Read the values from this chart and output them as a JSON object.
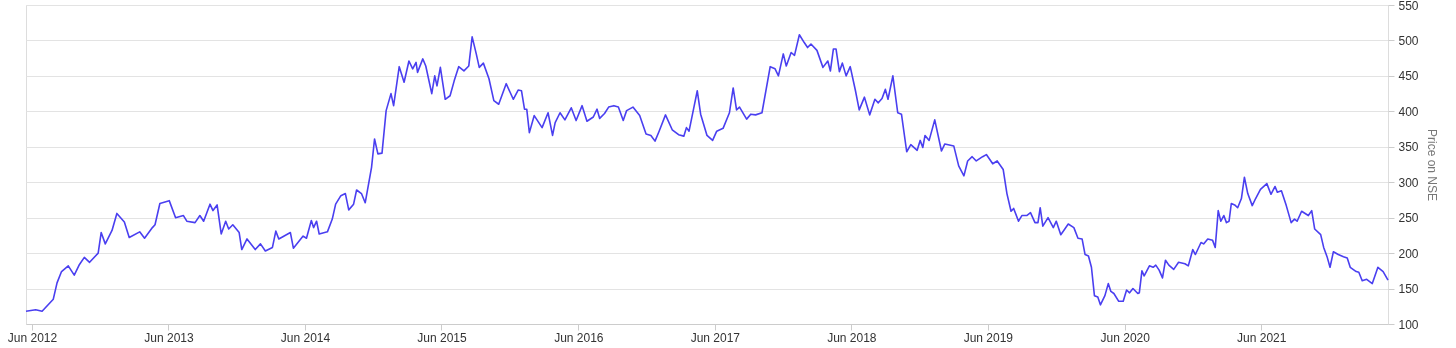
{
  "chart_data": {
    "type": "line",
    "ylabel": "Price on NSE",
    "grid": "y",
    "marker": "none",
    "line_style": "solid",
    "xlim": [
      "2012-05-16",
      "2022-05-06"
    ],
    "ylim": [
      100,
      550
    ],
    "yticks": [
      100,
      150,
      200,
      250,
      300,
      350,
      400,
      450,
      500,
      550
    ],
    "xticks": [
      {
        "value": "2012-06-01",
        "label": "Jun 2012"
      },
      {
        "value": "2013-06-01",
        "label": "Jun 2013"
      },
      {
        "value": "2014-06-01",
        "label": "Jun 2014"
      },
      {
        "value": "2015-06-01",
        "label": "Jun 2015"
      },
      {
        "value": "2016-06-01",
        "label": "Jun 2016"
      },
      {
        "value": "2017-06-01",
        "label": "Jun 2017"
      },
      {
        "value": "2018-06-01",
        "label": "Jun 2018"
      },
      {
        "value": "2019-06-01",
        "label": "Jun 2019"
      },
      {
        "value": "2020-06-01",
        "label": "Jun 2020"
      },
      {
        "value": "2021-06-01",
        "label": "Jun 2021"
      }
    ],
    "series": [
      {
        "color": "#4a3ff0",
        "x": [
          "2012-05-16",
          "2012-06-11",
          "2012-06-28",
          "2012-07-28",
          "2012-08-07",
          "2012-08-19",
          "2012-09-06",
          "2012-09-22",
          "2012-10-06",
          "2012-10-19",
          "2012-11-02",
          "2012-11-25",
          "2012-12-03",
          "2012-12-14",
          "2013-01-01",
          "2013-01-14",
          "2013-02-03",
          "2013-02-16",
          "2013-03-16",
          "2013-03-29",
          "2013-04-19",
          "2013-04-26",
          "2013-05-09",
          "2013-06-03",
          "2013-06-20",
          "2013-07-11",
          "2013-07-20",
          "2013-08-11",
          "2013-08-24",
          "2013-09-03",
          "2013-09-20",
          "2013-09-28",
          "2013-10-09",
          "2013-10-20",
          "2013-11-01",
          "2013-11-09",
          "2013-11-20",
          "2013-12-07",
          "2013-12-14",
          "2013-12-28",
          "2014-01-19",
          "2014-02-02",
          "2014-02-15",
          "2014-03-06",
          "2014-03-15",
          "2014-03-23",
          "2014-04-23",
          "2014-05-01",
          "2014-05-27",
          "2014-06-05",
          "2014-06-18",
          "2014-06-24",
          "2014-07-02",
          "2014-07-09",
          "2014-07-31",
          "2014-08-13",
          "2014-08-22",
          "2014-09-05",
          "2014-09-17",
          "2014-09-26",
          "2014-10-09",
          "2014-10-17",
          "2014-10-30",
          "2014-11-09",
          "2014-11-26",
          "2014-12-04",
          "2014-12-13",
          "2014-12-24",
          "2015-01-04",
          "2015-01-17",
          "2015-01-24",
          "2015-02-08",
          "2015-02-21",
          "2015-03-06",
          "2015-03-16",
          "2015-03-25",
          "2015-03-29",
          "2015-04-12",
          "2015-04-20",
          "2015-05-06",
          "2015-05-14",
          "2015-05-20",
          "2015-05-29",
          "2015-06-11",
          "2015-06-24",
          "2015-07-05",
          "2015-07-17",
          "2015-07-31",
          "2015-08-13",
          "2015-08-22",
          "2015-09-02",
          "2015-09-10",
          "2015-09-21",
          "2015-10-06",
          "2015-10-19",
          "2015-11-01",
          "2015-11-21",
          "2015-12-10",
          "2015-12-23",
          "2016-01-01",
          "2016-01-09",
          "2016-01-15",
          "2016-01-22",
          "2016-02-04",
          "2016-02-25",
          "2016-03-12",
          "2016-03-24",
          "2016-03-31",
          "2016-04-13",
          "2016-04-26",
          "2016-05-13",
          "2016-05-26",
          "2016-06-11",
          "2016-06-24",
          "2016-07-11",
          "2016-07-21",
          "2016-07-28",
          "2016-08-10",
          "2016-08-21",
          "2016-09-04",
          "2016-09-16",
          "2016-09-29",
          "2016-10-08",
          "2016-10-25",
          "2016-11-12",
          "2016-11-29",
          "2016-12-12",
          "2016-12-23",
          "2017-01-03",
          "2017-01-20",
          "2017-02-07",
          "2017-02-24",
          "2017-03-10",
          "2017-03-17",
          "2017-03-24",
          "2017-04-05",
          "2017-04-15",
          "2017-04-24",
          "2017-05-11",
          "2017-05-26",
          "2017-06-06",
          "2017-06-23",
          "2017-07-10",
          "2017-07-20",
          "2017-07-29",
          "2017-08-06",
          "2017-08-25",
          "2017-09-05",
          "2017-09-18",
          "2017-10-05",
          "2017-10-27",
          "2017-11-09",
          "2017-11-18",
          "2017-12-01",
          "2017-12-09",
          "2017-12-22",
          "2017-12-31",
          "2018-01-13",
          "2018-01-26",
          "2018-02-04",
          "2018-02-13",
          "2018-03-01",
          "2018-03-17",
          "2018-03-30",
          "2018-04-06",
          "2018-04-14",
          "2018-04-21",
          "2018-04-30",
          "2018-05-08",
          "2018-05-18",
          "2018-05-29",
          "2018-06-12",
          "2018-06-22",
          "2018-07-06",
          "2018-07-20",
          "2018-08-03",
          "2018-08-12",
          "2018-08-22",
          "2018-08-31",
          "2018-09-07",
          "2018-09-20",
          "2018-10-03",
          "2018-10-13",
          "2018-10-27",
          "2018-11-07",
          "2018-11-24",
          "2018-12-02",
          "2018-12-09",
          "2018-12-15",
          "2018-12-26",
          "2019-01-10",
          "2019-01-28",
          "2019-02-06",
          "2019-03-02",
          "2019-03-15",
          "2019-03-29",
          "2019-04-08",
          "2019-04-20",
          "2019-05-01",
          "2019-05-18",
          "2019-05-28",
          "2019-06-14",
          "2019-06-26",
          "2019-07-12",
          "2019-07-22",
          "2019-08-02",
          "2019-08-09",
          "2019-08-22",
          "2019-08-31",
          "2019-09-13",
          "2019-09-23",
          "2019-10-05",
          "2019-10-13",
          "2019-10-19",
          "2019-10-26",
          "2019-11-09",
          "2019-11-23",
          "2019-12-01",
          "2019-12-13",
          "2019-12-21",
          "2020-01-02",
          "2020-01-17",
          "2020-01-28",
          "2020-02-08",
          "2020-02-16",
          "2020-02-25",
          "2020-03-04",
          "2020-03-12",
          "2020-03-21",
          "2020-03-28",
          "2020-04-09",
          "2020-04-18",
          "2020-04-25",
          "2020-05-03",
          "2020-05-16",
          "2020-05-28",
          "2020-06-06",
          "2020-06-14",
          "2020-06-23",
          "2020-07-06",
          "2020-07-10",
          "2020-07-17",
          "2020-07-23",
          "2020-08-06",
          "2020-08-16",
          "2020-08-23",
          "2020-09-01",
          "2020-09-10",
          "2020-09-18",
          "2020-09-27",
          "2020-10-10",
          "2020-10-23",
          "2020-11-09",
          "2020-11-18",
          "2020-11-30",
          "2020-12-07",
          "2020-12-22",
          "2020-12-29",
          "2021-01-09",
          "2021-01-22",
          "2021-01-29",
          "2021-02-06",
          "2021-02-13",
          "2021-02-21",
          "2021-02-28",
          "2021-03-07",
          "2021-03-13",
          "2021-03-22",
          "2021-03-30",
          "2021-04-09",
          "2021-04-17",
          "2021-04-26",
          "2021-05-08",
          "2021-05-17",
          "2021-05-30",
          "2021-06-16",
          "2021-06-27",
          "2021-07-08",
          "2021-07-14",
          "2021-07-25",
          "2021-08-07",
          "2021-08-20",
          "2021-08-29",
          "2021-09-05",
          "2021-09-17",
          "2021-10-05",
          "2021-10-14",
          "2021-10-22",
          "2021-11-07",
          "2021-11-15",
          "2021-11-24",
          "2021-12-02",
          "2021-12-11",
          "2021-12-24",
          "2022-01-07",
          "2022-01-17",
          "2022-01-25",
          "2022-02-10",
          "2022-02-17",
          "2022-02-26",
          "2022-03-10",
          "2022-03-25",
          "2022-04-09",
          "2022-04-23",
          "2022-05-06"
        ],
        "values": [
          118,
          120,
          118,
          135,
          158,
          174,
          182,
          169,
          184,
          194,
          187,
          200,
          229,
          213,
          232,
          256,
          244,
          222,
          230,
          221,
          236,
          240,
          270,
          274,
          250,
          253,
          245,
          243,
          253,
          245,
          269,
          260,
          268,
          227,
          245,
          234,
          240,
          229,
          205,
          220,
          205,
          213,
          203,
          208,
          231,
          220,
          229,
          207,
          224,
          221,
          246,
          236,
          245,
          227,
          230,
          248,
          269,
          281,
          284,
          261,
          269,
          289,
          284,
          271,
          321,
          361,
          340,
          341,
          401,
          425,
          408,
          463,
          441,
          471,
          460,
          469,
          455,
          474,
          464,
          425,
          450,
          436,
          462,
          417,
          422,
          443,
          463,
          457,
          464,
          505,
          481,
          462,
          468,
          446,
          415,
          410,
          439,
          417,
          430,
          429,
          403,
          403,
          370,
          394,
          377,
          398,
          366,
          384,
          398,
          388,
          405,
          387,
          408,
          386,
          392,
          403,
          390,
          397,
          406,
          408,
          406,
          387,
          401,
          406,
          394,
          368,
          366,
          358,
          372,
          395,
          374,
          367,
          365,
          377,
          372,
          403,
          429,
          396,
          366,
          359,
          372,
          376,
          398,
          433,
          402,
          406,
          389,
          396,
          395,
          398,
          463,
          460,
          450,
          481,
          464,
          483,
          479,
          508,
          497,
          490,
          495,
          486,
          462,
          471,
          457,
          488,
          488,
          456,
          468,
          450,
          463,
          429,
          402,
          420,
          395,
          417,
          412,
          418,
          431,
          417,
          450,
          398,
          396,
          343,
          353,
          345,
          359,
          349,
          366,
          359,
          388,
          344,
          354,
          351,
          323,
          309,
          330,
          336,
          330,
          336,
          339,
          326,
          330,
          318,
          284,
          259,
          263,
          245,
          253,
          253,
          257,
          243,
          243,
          264,
          238,
          250,
          236,
          245,
          226,
          232,
          241,
          236,
          221,
          220,
          198,
          196,
          180,
          140,
          138,
          127,
          140,
          157,
          146,
          143,
          132,
          132,
          148,
          144,
          150,
          143,
          144,
          175,
          168,
          182,
          180,
          183,
          176,
          165,
          190,
          183,
          177,
          187,
          185,
          182,
          205,
          198,
          215,
          213,
          220,
          218,
          208,
          260,
          245,
          253,
          243,
          245,
          270,
          268,
          264,
          277,
          307,
          284,
          267,
          277,
          290,
          298,
          283,
          294,
          286,
          288,
          267,
          243,
          248,
          245,
          259,
          253,
          260,
          234,
          226,
          208,
          195,
          180,
          202,
          198,
          195,
          193,
          180,
          174,
          173,
          161,
          163,
          157,
          180,
          174,
          162
        ]
      }
    ]
  }
}
